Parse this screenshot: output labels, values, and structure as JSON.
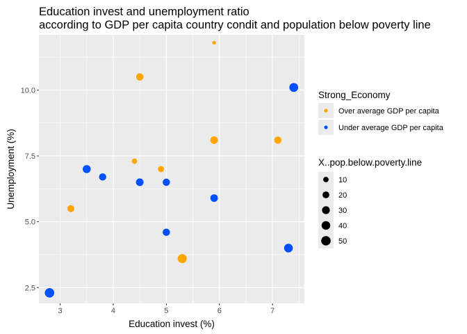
{
  "chart_data": {
    "type": "scatter",
    "title_lines": [
      "Education invest and unemployment ratio",
      "according to GDP per capita country condit and population below poverty line"
    ],
    "xlabel": "Education invest (%)",
    "ylabel": "Unemployment (%)",
    "xlim": [
      2.6,
      7.6
    ],
    "ylim": [
      1.9,
      12.1
    ],
    "xticks": [
      3,
      4,
      5,
      6,
      7
    ],
    "xtick_labels": [
      "3",
      "4",
      "5",
      "6",
      "7"
    ],
    "yticks": [
      2.5,
      5.0,
      7.5,
      10.0
    ],
    "ytick_labels": [
      "2.5",
      "5.0",
      "7.5",
      "10.0"
    ],
    "grid": true,
    "colors": {
      "over": "#FFA500",
      "under": "#0050FF",
      "panel": "#EBEBEB",
      "grid": "#FFFFFF",
      "size_key": "#000000"
    },
    "color_legend": {
      "title": "Strong_Economy",
      "entries": [
        {
          "key": "over",
          "label": "Over average GDP per capita"
        },
        {
          "key": "under",
          "label": "Under average GDP per capita"
        }
      ]
    },
    "size_legend": {
      "title": "X..pop.below.poverty.line",
      "entries": [
        {
          "value": 10,
          "label": "10"
        },
        {
          "value": 20,
          "label": "20"
        },
        {
          "value": 30,
          "label": "30"
        },
        {
          "value": 40,
          "label": "40"
        },
        {
          "value": 50,
          "label": "50"
        }
      ]
    },
    "legend_position": "right",
    "points": [
      {
        "x": 5.9,
        "y": 11.8,
        "group": "over",
        "pop_below_poverty": 2
      },
      {
        "x": 4.5,
        "y": 10.5,
        "group": "over",
        "pop_below_poverty": 25
      },
      {
        "x": 5.9,
        "y": 8.1,
        "group": "over",
        "pop_below_poverty": 28
      },
      {
        "x": 7.1,
        "y": 8.1,
        "group": "over",
        "pop_below_poverty": 25
      },
      {
        "x": 4.4,
        "y": 7.3,
        "group": "over",
        "pop_below_poverty": 10
      },
      {
        "x": 4.9,
        "y": 7.0,
        "group": "over",
        "pop_below_poverty": 15
      },
      {
        "x": 3.2,
        "y": 5.5,
        "group": "over",
        "pop_below_poverty": 22
      },
      {
        "x": 5.3,
        "y": 3.6,
        "group": "over",
        "pop_below_poverty": 45
      },
      {
        "x": 7.4,
        "y": 10.1,
        "group": "under",
        "pop_below_poverty": 42
      },
      {
        "x": 3.5,
        "y": 7.0,
        "group": "under",
        "pop_below_poverty": 32
      },
      {
        "x": 3.8,
        "y": 6.7,
        "group": "under",
        "pop_below_poverty": 24
      },
      {
        "x": 4.5,
        "y": 6.5,
        "group": "under",
        "pop_below_poverty": 28
      },
      {
        "x": 5.0,
        "y": 6.5,
        "group": "under",
        "pop_below_poverty": 25
      },
      {
        "x": 5.9,
        "y": 5.9,
        "group": "under",
        "pop_below_poverty": 27
      },
      {
        "x": 5.0,
        "y": 4.6,
        "group": "under",
        "pop_below_poverty": 25
      },
      {
        "x": 7.3,
        "y": 4.0,
        "group": "under",
        "pop_below_poverty": 40
      },
      {
        "x": 2.8,
        "y": 2.3,
        "group": "under",
        "pop_below_poverty": 50
      }
    ]
  }
}
